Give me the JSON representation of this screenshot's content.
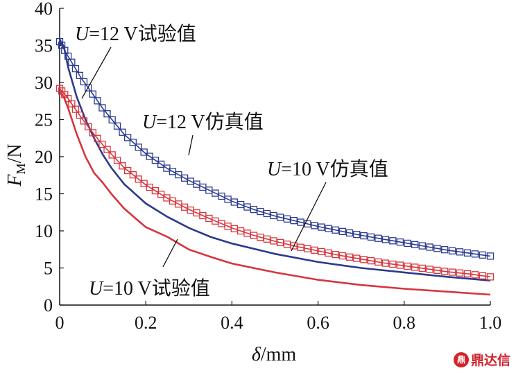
{
  "chart_data": {
    "type": "line",
    "xlabel_symbol": "δ",
    "xlabel_unit": "/mm",
    "ylabel_symbol": "F",
    "ylabel_sub": "M",
    "ylabel_unit": "/N",
    "xlim": [
      0,
      1.0
    ],
    "ylim": [
      0,
      40
    ],
    "xticks": [
      0,
      0.2,
      0.4,
      0.6,
      0.8,
      1.0
    ],
    "xtick_labels": [
      "0",
      "0.2",
      "0.4",
      "0.6",
      "0.8",
      "1.0"
    ],
    "yticks": [
      0,
      5,
      10,
      15,
      20,
      25,
      30,
      35,
      40
    ],
    "ytick_labels": [
      "0",
      "5",
      "10",
      "15",
      "20",
      "25",
      "30",
      "35",
      "40"
    ],
    "grid": false,
    "colors": {
      "blue": "#2b3a8f",
      "red": "#d8343c"
    },
    "series": [
      {
        "name": "U=12 V仿真值",
        "color": "#2b3a8f",
        "marker": "square",
        "x": [
          0,
          0.02,
          0.05,
          0.08,
          0.1,
          0.15,
          0.2,
          0.25,
          0.3,
          0.35,
          0.4,
          0.45,
          0.5,
          0.55,
          0.6,
          0.65,
          0.7,
          0.75,
          0.8,
          0.85,
          0.9,
          0.95,
          1.0
        ],
        "y": [
          35.5,
          33.5,
          30.6,
          28.2,
          26.5,
          23.0,
          20.4,
          18.4,
          16.8,
          15.4,
          14.0,
          12.9,
          12.0,
          11.3,
          10.6,
          10.0,
          9.4,
          8.9,
          8.4,
          7.9,
          7.4,
          7.0,
          6.6
        ]
      },
      {
        "name": "U=12 V试验值",
        "color": "#2b3a8f",
        "marker": "none",
        "x": [
          0,
          0.01,
          0.02,
          0.04,
          0.06,
          0.08,
          0.1,
          0.12,
          0.15,
          0.2,
          0.25,
          0.3,
          0.35,
          0.4,
          0.5,
          0.6,
          0.7,
          0.8,
          0.9,
          1.0
        ],
        "y": [
          35.8,
          34.8,
          32.0,
          28.0,
          25.0,
          22.5,
          20.3,
          18.5,
          16.3,
          13.7,
          11.9,
          10.4,
          9.2,
          8.3,
          6.9,
          5.8,
          5.0,
          4.4,
          3.8,
          3.3
        ]
      },
      {
        "name": "U=10 V仿真值",
        "color": "#d8343c",
        "marker": "square",
        "x": [
          0,
          0.02,
          0.05,
          0.08,
          0.1,
          0.15,
          0.2,
          0.25,
          0.3,
          0.35,
          0.4,
          0.45,
          0.5,
          0.55,
          0.6,
          0.65,
          0.7,
          0.75,
          0.8,
          0.85,
          0.9,
          0.95,
          1.0
        ],
        "y": [
          29.2,
          27.8,
          25.3,
          23.0,
          21.6,
          18.5,
          16.2,
          14.4,
          12.9,
          11.6,
          10.4,
          9.4,
          8.6,
          7.9,
          7.3,
          6.7,
          6.2,
          5.7,
          5.3,
          4.9,
          4.5,
          4.2,
          3.8
        ]
      },
      {
        "name": "U=10 V试验值",
        "color": "#d8343c",
        "marker": "none",
        "x": [
          0,
          0.01,
          0.02,
          0.04,
          0.06,
          0.08,
          0.1,
          0.12,
          0.15,
          0.2,
          0.25,
          0.3,
          0.35,
          0.4,
          0.5,
          0.6,
          0.7,
          0.8,
          0.9,
          1.0
        ],
        "y": [
          28.8,
          28.0,
          26.5,
          23.0,
          20.0,
          17.8,
          16.5,
          15.0,
          13.0,
          10.5,
          9.2,
          7.5,
          6.5,
          5.6,
          4.4,
          3.4,
          2.7,
          2.2,
          1.8,
          1.4
        ]
      }
    ],
    "annotations": [
      {
        "label": "U=12 V试验值",
        "italic_part": "U",
        "rest": "=12 V试验值",
        "target_series": 1,
        "target_x": 0.05
      },
      {
        "label": "U=12 V仿真值",
        "italic_part": "U",
        "rest": "=12 V仿真值",
        "target_series": 0,
        "target_x": 0.3
      },
      {
        "label": "U=10 V仿真值",
        "italic_part": "U",
        "rest": "=10 V仿真值",
        "target_series": 2,
        "target_x": 0.55
      },
      {
        "label": "U=10 V试验值",
        "italic_part": "U",
        "rest": "=10 V试验值",
        "target_series": 3,
        "target_x": 0.28
      }
    ]
  },
  "watermark": {
    "logo_glyph": "鼎",
    "text": "鼎达信"
  }
}
